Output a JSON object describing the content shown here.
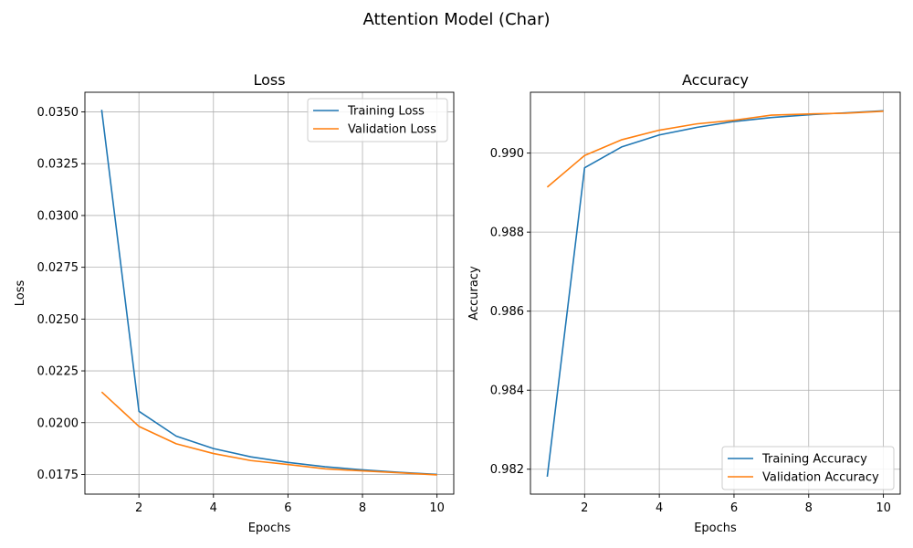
{
  "suptitle": "Attention Model (Char)",
  "colors": {
    "training": "#1f77b4",
    "validation": "#ff7f0e",
    "grid": "#b0b0b0"
  },
  "chart_data": [
    {
      "type": "line",
      "title": "Loss",
      "xlabel": "Epochs",
      "ylabel": "Loss",
      "xlim": [
        0.55,
        10.45
      ],
      "ylim": [
        0.01655,
        0.03595
      ],
      "xticks": [
        2,
        4,
        6,
        8,
        10
      ],
      "yticks": [
        0.0175,
        0.02,
        0.0225,
        0.025,
        0.0275,
        0.03,
        0.0325,
        0.035
      ],
      "ytick_labels": [
        "0.0175",
        "0.0200",
        "0.0225",
        "0.0250",
        "0.0275",
        "0.0300",
        "0.0325",
        "0.0350"
      ],
      "grid": true,
      "legend_loc": "upper right",
      "x": [
        1,
        2,
        3,
        4,
        5,
        6,
        7,
        8,
        9,
        10
      ],
      "series": [
        {
          "name": "Training Loss",
          "color_key": "training",
          "values": [
            0.0351,
            0.02055,
            0.01935,
            0.01875,
            0.01835,
            0.01808,
            0.01787,
            0.01772,
            0.0176,
            0.0175
          ]
        },
        {
          "name": "Validation Loss",
          "color_key": "validation",
          "values": [
            0.02148,
            0.01982,
            0.01898,
            0.01851,
            0.01817,
            0.01798,
            0.01777,
            0.01767,
            0.01758,
            0.01748
          ]
        }
      ]
    },
    {
      "type": "line",
      "title": "Accuracy",
      "xlabel": "Epochs",
      "ylabel": "Accuracy",
      "xlim": [
        0.55,
        10.45
      ],
      "ylim": [
        0.98137,
        0.99154
      ],
      "xticks": [
        2,
        4,
        6,
        8,
        10
      ],
      "yticks": [
        0.982,
        0.984,
        0.986,
        0.988,
        0.99
      ],
      "ytick_labels": [
        "0.982",
        "0.984",
        "0.986",
        "0.988",
        "0.990"
      ],
      "grid": true,
      "legend_loc": "lower right",
      "x": [
        1,
        2,
        3,
        4,
        5,
        6,
        7,
        8,
        9,
        10
      ],
      "series": [
        {
          "name": "Training Accuracy",
          "color_key": "training",
          "values": [
            0.98181,
            0.98963,
            0.99016,
            0.99046,
            0.99065,
            0.9908,
            0.9909,
            0.99097,
            0.99102,
            0.99107
          ]
        },
        {
          "name": "Validation Accuracy",
          "color_key": "validation",
          "values": [
            0.98914,
            0.98994,
            0.99034,
            0.99058,
            0.99074,
            0.99083,
            0.99096,
            0.99099,
            0.99101,
            0.99106
          ]
        }
      ]
    }
  ]
}
